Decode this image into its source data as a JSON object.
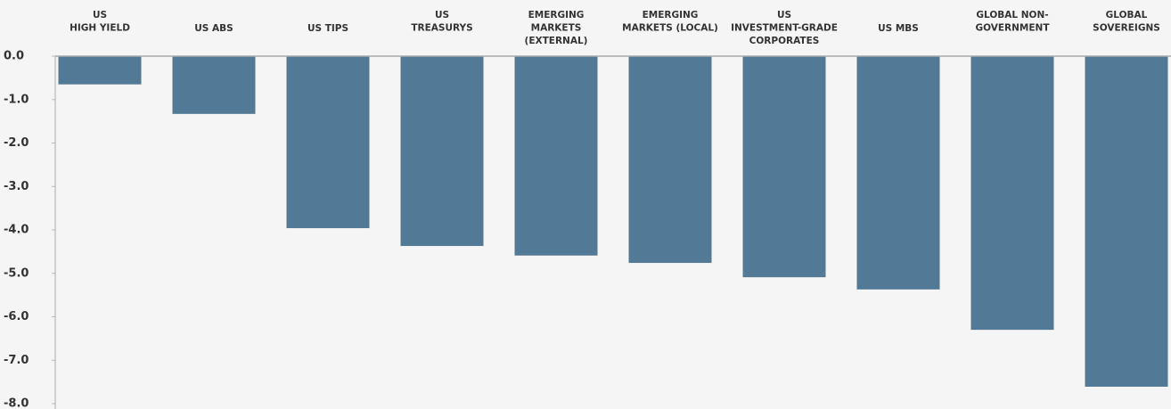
{
  "chart_data": {
    "type": "bar",
    "categories": [
      "US\nHIGH YIELD",
      "US ABS",
      "US TIPS",
      "US\nTREASURYS",
      "EMERGING\nMARKETS\n(EXTERNAL)",
      "EMERGING\nMARKETS (LOCAL)",
      "US\nINVESTMENT-GRADE\nCORPORATES",
      "US MBS",
      "GLOBAL NON-\nGOVERNMENT",
      "GLOBAL\nSOVEREIGNS"
    ],
    "values": [
      -0.65,
      -1.33,
      -3.96,
      -4.37,
      -4.59,
      -4.76,
      -5.09,
      -5.37,
      -6.3,
      -7.61
    ],
    "color": "#527a96",
    "ylim": [
      -8,
      0
    ],
    "yticks": [
      {
        "value": 0,
        "label": "0.0"
      },
      {
        "value": -1,
        "label": "-1.0"
      },
      {
        "value": -2,
        "label": "-2.0"
      },
      {
        "value": -3,
        "label": "-3.0"
      },
      {
        "value": -4,
        "label": "-4.0"
      },
      {
        "value": -5,
        "label": "-5.0"
      },
      {
        "value": -6,
        "label": "-6.0"
      },
      {
        "value": -7,
        "label": "-7.0"
      },
      {
        "value": -8,
        "label": "-8.0"
      }
    ],
    "grid": false
  }
}
